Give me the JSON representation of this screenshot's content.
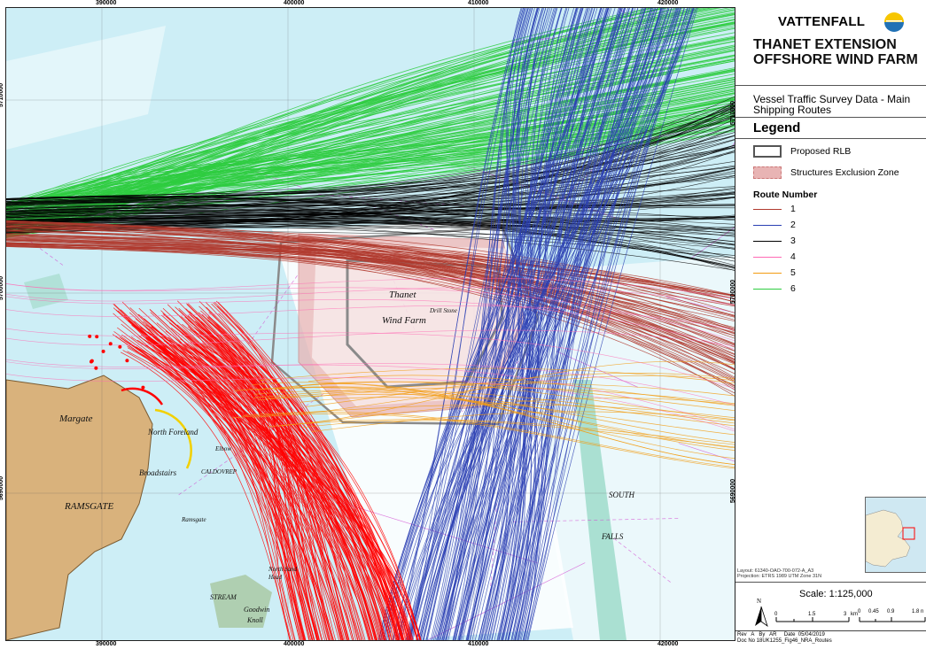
{
  "map": {
    "grid_x_labels": [
      "390000",
      "400000",
      "410000",
      "420000"
    ],
    "grid_y_labels": [
      "5710000",
      "5700000",
      "5690000"
    ],
    "place_labels": [
      "Margate",
      "North Foreland",
      "Broadstairs",
      "RAMSGATE",
      "Thanet",
      "Wind Farm",
      "SOUTH",
      "FALLS",
      "STREAM",
      "Goodwin",
      "Knoll",
      "Elbow",
      "CALDOVREP",
      "Ramsgate",
      "North Sand",
      "Head",
      "Drill Stone"
    ],
    "colors": {
      "sea_light": "#cdeef6",
      "sea_deep": "#ffffff",
      "land": "#d9b27c",
      "route_1": "#b03a2e",
      "route_2": "#2a3fb3",
      "route_3": "#000000",
      "route_4": "#ff69b4",
      "route_5": "#f39c12",
      "route_6": "#2ecc40",
      "red_traffic": "#ff0000",
      "rlb": "#8a8a8a",
      "exclusion": "#e8b4b4"
    }
  },
  "panel": {
    "brand": "VATTENFALL",
    "brand_icon": "vattenfall-sun-icon",
    "title_line1": "THANET EXTENSION",
    "title_line2": "OFFSHORE WIND FARM",
    "subtitle": "Vessel Traffic Survey Data - Main Shipping Routes",
    "legend_title": "Legend",
    "legend_items": [
      {
        "label": "Proposed RLB"
      },
      {
        "label": "Structures Exclusion Zone"
      }
    ],
    "route_title": "Route Number",
    "routes": [
      {
        "label": "1",
        "color": "#b03a2e"
      },
      {
        "label": "2",
        "color": "#2a3fb3"
      },
      {
        "label": "3",
        "color": "#000000"
      },
      {
        "label": "4",
        "color": "#ff69b4"
      },
      {
        "label": "5",
        "color": "#f39c12"
      },
      {
        "label": "6",
        "color": "#2ecc40"
      }
    ],
    "layout_line1": "Layout: 61340-OAO-700-072-A_A3",
    "layout_line2": "Projection: ETRS 1989 UTM Zone 31N",
    "scale": "Scale: 1:125,000",
    "north": "N",
    "scale_km": [
      "0",
      "1.5",
      "3",
      "km"
    ],
    "scale_nm": [
      "0",
      "0.45",
      "0.9",
      "1.8 n"
    ],
    "footer_rev": "Rev",
    "footer_rev_val": "A",
    "footer_by": "By",
    "footer_by_val": "AR",
    "footer_date": "Date",
    "footer_date_val": "05/04/2019",
    "footer_doc": "Doc No 18UK1255_Fig46_NRA_Routes"
  }
}
